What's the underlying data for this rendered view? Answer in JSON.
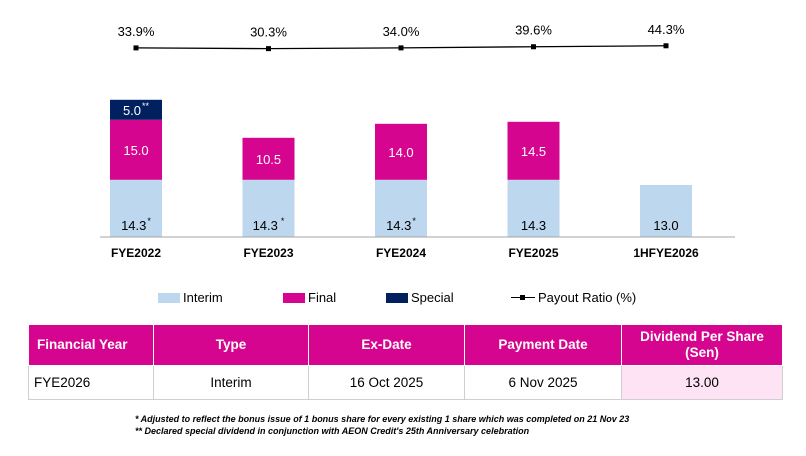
{
  "chart_data": {
    "type": "bar",
    "stacked": true,
    "categories": [
      "FYE2022",
      "FYE2023",
      "FYE2024",
      "FYE2025",
      "1HFYE2026"
    ],
    "series": [
      {
        "name": "Interim",
        "values": [
          14.3,
          14.3,
          14.3,
          14.3,
          13.0
        ],
        "labels": [
          "14.3*",
          "14.3 *",
          "14.3*",
          "14.3",
          "13.0"
        ]
      },
      {
        "name": "Final",
        "values": [
          15.0,
          10.5,
          14.0,
          14.5,
          null
        ],
        "labels": [
          "15.0",
          "10.5",
          "14.0",
          "14.5",
          ""
        ]
      },
      {
        "name": "Special",
        "values": [
          5.0,
          null,
          null,
          null,
          null
        ],
        "labels": [
          "5.0**",
          "",
          "",
          "",
          ""
        ]
      }
    ],
    "line_series": {
      "name": "Payout Ratio (%)",
      "values": [
        33.9,
        30.3,
        34.0,
        39.6,
        44.3
      ],
      "labels": [
        "33.9%",
        "30.3%",
        "34.0%",
        "39.6%",
        "44.3%"
      ]
    },
    "colors": {
      "Interim": "#bdd7ee",
      "Final": "#d6058f",
      "Special": "#002060",
      "line": "#000000"
    },
    "legend_position": "bottom",
    "grid": false
  },
  "legend": [
    {
      "label": "Interim",
      "color": "#bdd7ee"
    },
    {
      "label": "Final",
      "color": "#d6058f"
    },
    {
      "label": "Special",
      "color": "#002060"
    },
    {
      "label": "Payout Ratio (%)",
      "color": "#000000"
    }
  ],
  "table": {
    "headers": [
      "Financial Year",
      "Type",
      "Ex-Date",
      "Payment Date",
      "Dividend Per Share (Sen)"
    ],
    "rows": [
      [
        "FYE2026",
        "Interim",
        "16 Oct 2025",
        "6 Nov 2025",
        "13.00"
      ]
    ],
    "header_color": "#d6058f",
    "highlight_color": "#fde3f3"
  },
  "footnotes": [
    "*   Adjusted to reflect the bonus issue of 1 bonus share for every existing 1 share which was completed on 21 Nov 23",
    "** Declared special dividend in conjunction with AEON Credit's 25th Anniversary celebration"
  ]
}
